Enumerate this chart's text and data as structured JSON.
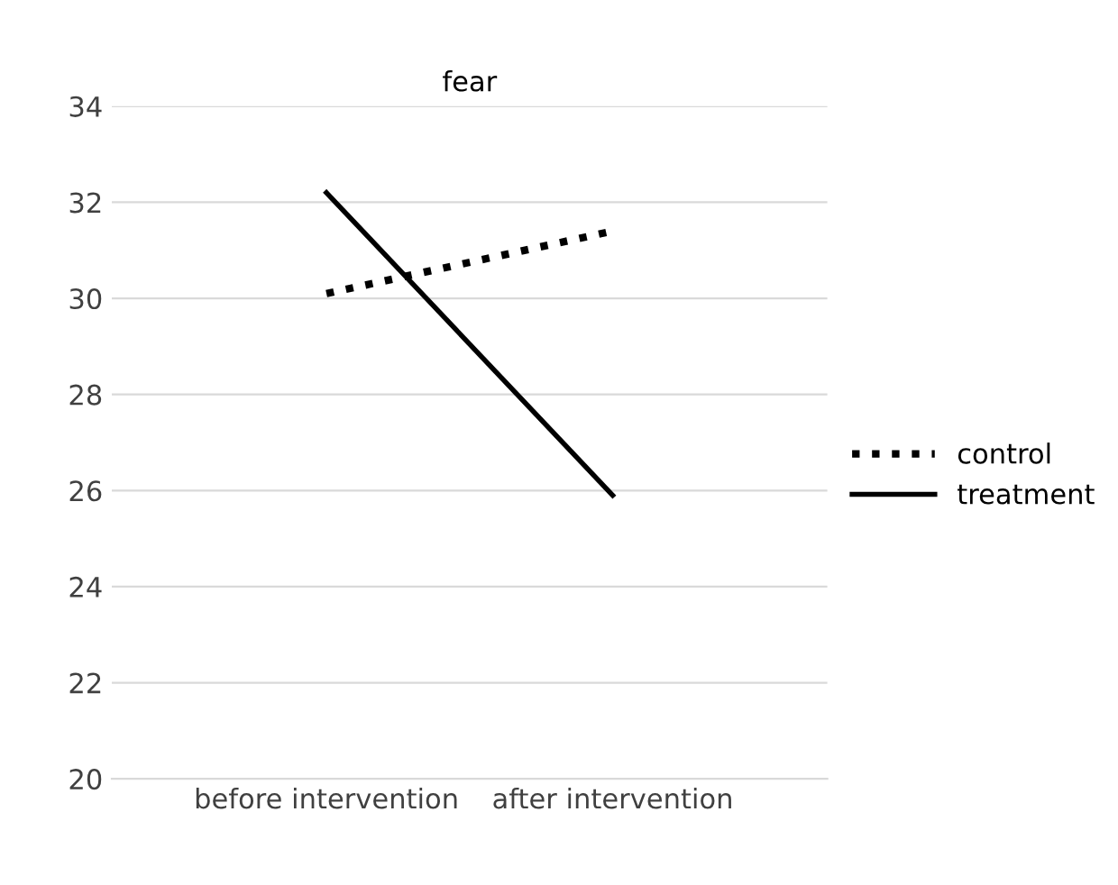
{
  "chart_data": {
    "type": "line",
    "title": "fear",
    "categories": [
      "before intervention",
      "after intervention"
    ],
    "series": [
      {
        "name": "control",
        "color": "#000000",
        "values": [
          30.1,
          31.4
        ],
        "line_style": "dotted"
      },
      {
        "name": "treatment",
        "color": "#000000",
        "values": [
          32.2,
          25.9
        ],
        "line_style": "solid"
      }
    ],
    "ylim": [
      20,
      34
    ],
    "yticks": [
      20,
      22,
      24,
      26,
      28,
      30,
      32,
      34
    ],
    "grid": "y",
    "legend": "right",
    "marker": "none"
  }
}
